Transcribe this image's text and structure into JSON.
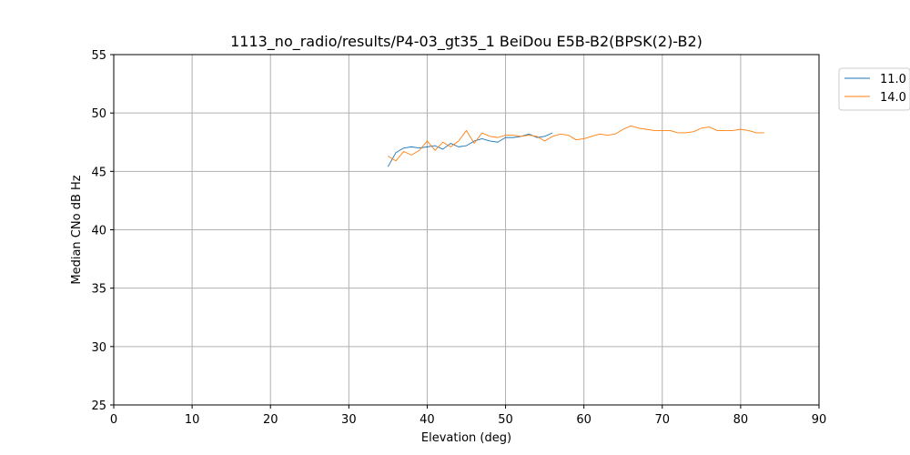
{
  "chart_data": {
    "type": "line",
    "title": "1113_no_radio/results/P4-03_gt35_1 BeiDou E5B-B2(BPSK(2)-B2)",
    "xlabel": "Elevation (deg)",
    "ylabel": "Median CNo dB Hz",
    "xlim": [
      0,
      90
    ],
    "ylim": [
      25,
      55
    ],
    "xticks": [
      0,
      10,
      20,
      30,
      40,
      50,
      60,
      70,
      80,
      90
    ],
    "yticks": [
      25,
      30,
      35,
      40,
      45,
      50,
      55
    ],
    "grid": true,
    "legend_position": "outside-top-right",
    "series": [
      {
        "name": "11.0",
        "color": "#1f77b4",
        "x": [
          35,
          36,
          37,
          38,
          39,
          40,
          41,
          42,
          43,
          44,
          45,
          46,
          47,
          48,
          49,
          50,
          51,
          52,
          53,
          54,
          55,
          56
        ],
        "y": [
          45.4,
          46.6,
          47.0,
          47.1,
          47.0,
          47.1,
          47.2,
          46.9,
          47.4,
          47.1,
          47.2,
          47.6,
          47.8,
          47.6,
          47.5,
          47.9,
          47.9,
          48.0,
          48.2,
          47.9,
          48.0,
          48.3
        ]
      },
      {
        "name": "14.0",
        "color": "#ff7f0e",
        "x": [
          35,
          36,
          37,
          38,
          39,
          40,
          41,
          42,
          43,
          44,
          45,
          46,
          47,
          48,
          49,
          50,
          51,
          52,
          53,
          54,
          55,
          56,
          57,
          58,
          59,
          60,
          61,
          62,
          63,
          64,
          65,
          66,
          67,
          68,
          69,
          70,
          71,
          72,
          73,
          74,
          75,
          76,
          77,
          78,
          79,
          80,
          81,
          82,
          83
        ],
        "y": [
          46.3,
          45.9,
          46.7,
          46.4,
          46.8,
          47.6,
          46.8,
          47.5,
          47.1,
          47.6,
          48.5,
          47.4,
          48.3,
          48.0,
          47.9,
          48.1,
          48.1,
          48.0,
          48.1,
          48.0,
          47.6,
          48.0,
          48.2,
          48.1,
          47.7,
          47.8,
          48.0,
          48.2,
          48.1,
          48.2,
          48.6,
          48.9,
          48.7,
          48.6,
          48.5,
          48.5,
          48.5,
          48.3,
          48.3,
          48.4,
          48.7,
          48.8,
          48.5,
          48.5,
          48.5,
          48.6,
          48.5,
          48.3,
          48.3
        ]
      }
    ]
  }
}
